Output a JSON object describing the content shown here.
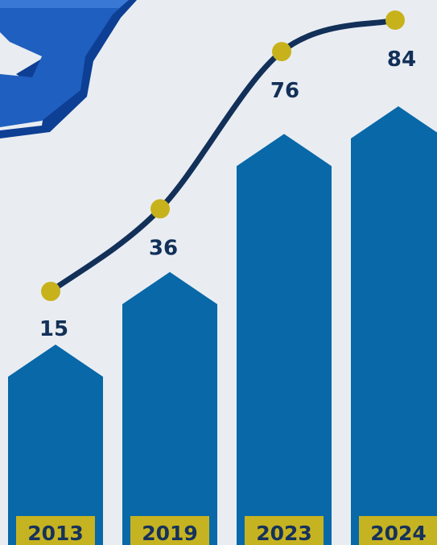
{
  "chart_data": {
    "type": "bar",
    "categories": [
      "2013",
      "2019",
      "2023",
      "2024"
    ],
    "values": [
      15,
      36,
      76,
      84
    ],
    "title": "",
    "xlabel": "",
    "ylabel": "",
    "colors": {
      "bar": "#0868a8",
      "line": "#123058",
      "point": "#c8b21c",
      "label_text": "#123058",
      "year_box": "#c6b321",
      "year_text": "#16325a",
      "background": "#e9edf2",
      "decoration": "#1f5fbf"
    }
  },
  "decoration": {
    "icon": "puzzle-piece-icon"
  }
}
